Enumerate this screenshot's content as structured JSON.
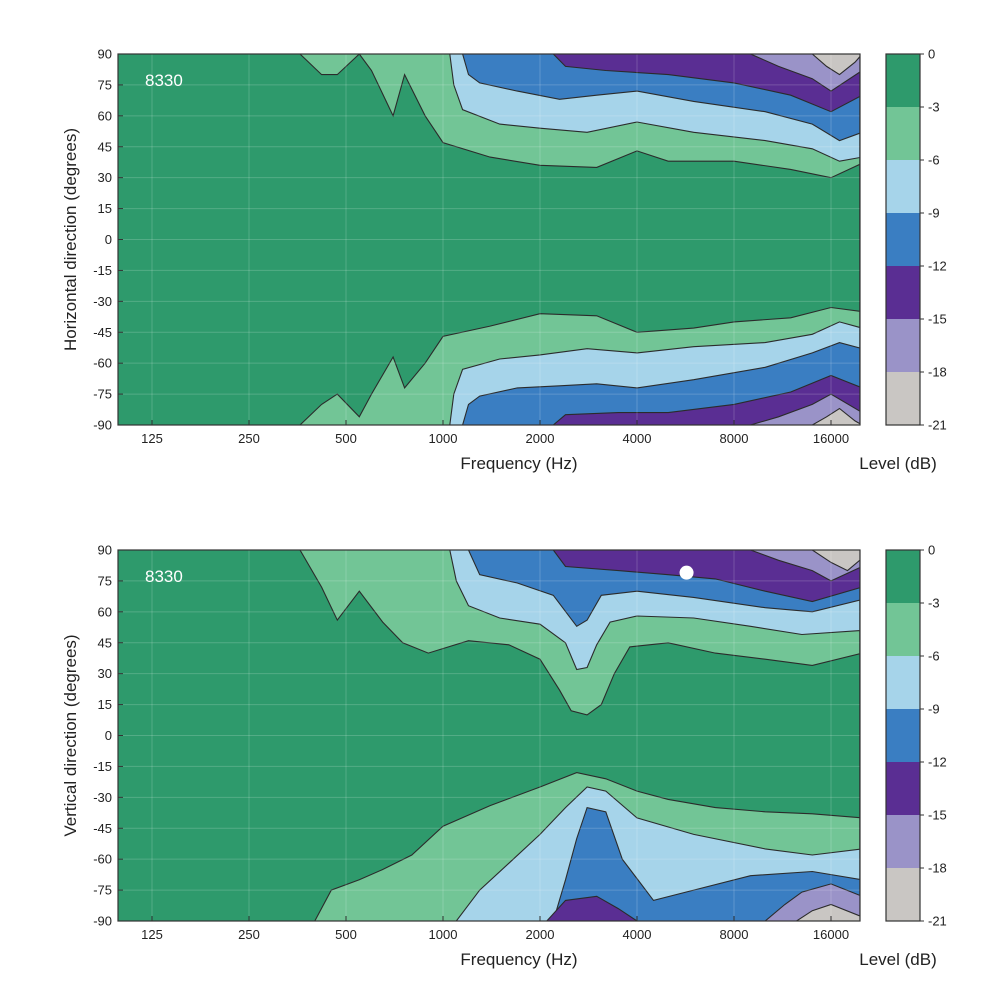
{
  "chart_data": [
    {
      "type": "heatmap",
      "subtype": "filled-contour",
      "id_label": "8330",
      "xlabel": "Frequency (Hz)",
      "ylabel": "Horizontal direction (degrees)",
      "x_scale": "log",
      "x_ticks": [
        "125",
        "250",
        "500",
        "1000",
        "2000",
        "4000",
        "8000",
        "16000"
      ],
      "y_ticks": [
        "90",
        "75",
        "60",
        "45",
        "30",
        "15",
        "0",
        "-15",
        "-30",
        "-45",
        "-60",
        "-75",
        "-90"
      ],
      "ylim": [
        -90,
        90
      ],
      "colorbar": {
        "label": "Level (dB)",
        "ticks": [
          "0",
          "-3",
          "-6",
          "-9",
          "-12",
          "-15",
          "-18",
          "-21"
        ],
        "colors": [
          "#2e9a6c",
          "#72c596",
          "#a6d4ea",
          "#3a7ec2",
          "#5a2e93",
          "#9a93c8",
          "#c9c6c3"
        ]
      },
      "contours": [
        {
          "level_db": -3,
          "upper": [
            [
              360,
              90
            ],
            [
              420,
              80
            ],
            [
              470,
              80
            ],
            [
              550,
              90
            ],
            [
              600,
              82
            ],
            [
              700,
              60
            ],
            [
              760,
              80
            ],
            [
              880,
              60
            ],
            [
              1000,
              47
            ],
            [
              1400,
              40
            ],
            [
              2000,
              36
            ],
            [
              3000,
              35
            ],
            [
              4000,
              43
            ],
            [
              5000,
              38
            ],
            [
              8000,
              38
            ],
            [
              12000,
              34
            ],
            [
              16000,
              30
            ],
            [
              20000,
              37
            ]
          ],
          "lower": [
            [
              360,
              -90
            ],
            [
              420,
              -80
            ],
            [
              470,
              -75
            ],
            [
              550,
              -86
            ],
            [
              600,
              -75
            ],
            [
              700,
              -57
            ],
            [
              760,
              -72
            ],
            [
              880,
              -60
            ],
            [
              1000,
              -47
            ],
            [
              1400,
              -42
            ],
            [
              2000,
              -36
            ],
            [
              3000,
              -37
            ],
            [
              4000,
              -45
            ],
            [
              6000,
              -43
            ],
            [
              8000,
              -40
            ],
            [
              12000,
              -38
            ],
            [
              16000,
              -33
            ],
            [
              20000,
              -35
            ]
          ]
        },
        {
          "level_db": -6,
          "upper": [
            [
              1050,
              90
            ],
            [
              1080,
              75
            ],
            [
              1150,
              63
            ],
            [
              1500,
              56
            ],
            [
              2000,
              54
            ],
            [
              2800,
              52
            ],
            [
              4000,
              57
            ],
            [
              6000,
              52
            ],
            [
              10000,
              48
            ],
            [
              14000,
              44
            ],
            [
              17000,
              38
            ],
            [
              20000,
              40
            ]
          ],
          "lower": [
            [
              1050,
              -90
            ],
            [
              1080,
              -75
            ],
            [
              1150,
              -63
            ],
            [
              1500,
              -58
            ],
            [
              2000,
              -56
            ],
            [
              2800,
              -53
            ],
            [
              4000,
              -55
            ],
            [
              6000,
              -52
            ],
            [
              10000,
              -50
            ],
            [
              14000,
              -46
            ],
            [
              17000,
              -40
            ],
            [
              20000,
              -43
            ]
          ]
        },
        {
          "level_db": -9,
          "upper": [
            [
              1150,
              90
            ],
            [
              1200,
              80
            ],
            [
              1300,
              76
            ],
            [
              1700,
              72
            ],
            [
              2300,
              68
            ],
            [
              3000,
              70
            ],
            [
              4000,
              72
            ],
            [
              6000,
              67
            ],
            [
              10000,
              62
            ],
            [
              14000,
              56
            ],
            [
              17000,
              48
            ],
            [
              20000,
              52
            ]
          ],
          "lower": [
            [
              1150,
              -90
            ],
            [
              1200,
              -80
            ],
            [
              1300,
              -76
            ],
            [
              1700,
              -72
            ],
            [
              2300,
              -71
            ],
            [
              3000,
              -70
            ],
            [
              4000,
              -72
            ],
            [
              6000,
              -68
            ],
            [
              10000,
              -62
            ],
            [
              14000,
              -55
            ],
            [
              17000,
              -50
            ],
            [
              20000,
              -53
            ]
          ]
        },
        {
          "level_db": -12,
          "upper": [
            [
              2200,
              90
            ],
            [
              2400,
              84
            ],
            [
              3200,
              82
            ],
            [
              5000,
              80
            ],
            [
              8000,
              76
            ],
            [
              12000,
              70
            ],
            [
              16000,
              62
            ],
            [
              20000,
              70
            ]
          ],
          "lower": [
            [
              2200,
              -90
            ],
            [
              2400,
              -85
            ],
            [
              3500,
              -84
            ],
            [
              5000,
              -84
            ],
            [
              8000,
              -80
            ],
            [
              12000,
              -74
            ],
            [
              16000,
              -66
            ],
            [
              20000,
              -72
            ]
          ]
        },
        {
          "level_db": -15,
          "upper": [
            [
              9000,
              90
            ],
            [
              11000,
              84
            ],
            [
              14000,
              78
            ],
            [
              16000,
              72
            ],
            [
              20000,
              82
            ]
          ],
          "lower": [
            [
              9000,
              -90
            ],
            [
              11000,
              -86
            ],
            [
              14000,
              -80
            ],
            [
              16000,
              -75
            ],
            [
              20000,
              -84
            ]
          ]
        },
        {
          "level_db": -18,
          "upper": [
            [
              14000,
              90
            ],
            [
              15500,
              84
            ],
            [
              17000,
              80
            ],
            [
              19000,
              86
            ],
            [
              20000,
              90
            ]
          ],
          "lower": [
            [
              14000,
              -90
            ],
            [
              15500,
              -86
            ],
            [
              17000,
              -82
            ],
            [
              19000,
              -88
            ],
            [
              20000,
              -90
            ]
          ]
        }
      ]
    },
    {
      "type": "heatmap",
      "subtype": "filled-contour",
      "id_label": "8330",
      "xlabel": "Frequency (Hz)",
      "ylabel": "Vertical direction (degrees)",
      "x_scale": "log",
      "x_ticks": [
        "125",
        "250",
        "500",
        "1000",
        "2000",
        "4000",
        "8000",
        "16000"
      ],
      "y_ticks": [
        "90",
        "75",
        "60",
        "45",
        "30",
        "15",
        "0",
        "-15",
        "-30",
        "-45",
        "-60",
        "-75",
        "-90"
      ],
      "ylim": [
        -90,
        90
      ],
      "marker": {
        "x": 5700,
        "y": 79,
        "color": "#ffffff"
      },
      "colorbar": {
        "label": "Level (dB)",
        "ticks": [
          "0",
          "-3",
          "-6",
          "-9",
          "-12",
          "-15",
          "-18",
          "-21"
        ],
        "colors": [
          "#2e9a6c",
          "#72c596",
          "#a6d4ea",
          "#3a7ec2",
          "#5a2e93",
          "#9a93c8",
          "#c9c6c3"
        ]
      },
      "contours": [
        {
          "level_db": -3,
          "upper": [
            [
              360,
              90
            ],
            [
              420,
              72
            ],
            [
              470,
              56
            ],
            [
              550,
              70
            ],
            [
              650,
              55
            ],
            [
              750,
              45
            ],
            [
              900,
              40
            ],
            [
              1200,
              46
            ],
            [
              1600,
              44
            ],
            [
              2000,
              37
            ],
            [
              2300,
              22
            ],
            [
              2500,
              12
            ],
            [
              2800,
              10
            ],
            [
              3100,
              15
            ],
            [
              3400,
              30
            ],
            [
              3800,
              43
            ],
            [
              5000,
              45
            ],
            [
              7000,
              40
            ],
            [
              10000,
              37
            ],
            [
              14000,
              34
            ],
            [
              20000,
              40
            ]
          ],
          "lower": [
            [
              400,
              -90
            ],
            [
              450,
              -75
            ],
            [
              550,
              -70
            ],
            [
              650,
              -65
            ],
            [
              800,
              -58
            ],
            [
              1000,
              -44
            ],
            [
              1400,
              -34
            ],
            [
              2000,
              -25
            ],
            [
              2600,
              -18
            ],
            [
              3200,
              -21
            ],
            [
              4000,
              -27
            ],
            [
              5000,
              -31
            ],
            [
              7000,
              -35
            ],
            [
              10000,
              -37
            ],
            [
              14000,
              -38
            ],
            [
              20000,
              -40
            ]
          ]
        },
        {
          "level_db": -6,
          "upper": [
            [
              1050,
              90
            ],
            [
              1100,
              75
            ],
            [
              1200,
              63
            ],
            [
              1500,
              57
            ],
            [
              2000,
              54
            ],
            [
              2400,
              45
            ],
            [
              2600,
              32
            ],
            [
              2800,
              33
            ],
            [
              3000,
              44
            ],
            [
              3300,
              55
            ],
            [
              4000,
              58
            ],
            [
              6000,
              57
            ],
            [
              9000,
              53
            ],
            [
              13000,
              49
            ],
            [
              20000,
              51
            ]
          ],
          "lower": [
            [
              1100,
              -90
            ],
            [
              1300,
              -75
            ],
            [
              1600,
              -62
            ],
            [
              2000,
              -48
            ],
            [
              2400,
              -35
            ],
            [
              2800,
              -25
            ],
            [
              3200,
              -27
            ],
            [
              4000,
              -40
            ],
            [
              6000,
              -48
            ],
            [
              10000,
              -55
            ],
            [
              14000,
              -58
            ],
            [
              20000,
              -55
            ]
          ]
        },
        {
          "level_db": -9,
          "upper": [
            [
              1200,
              90
            ],
            [
              1300,
              78
            ],
            [
              1700,
              74
            ],
            [
              2200,
              68
            ],
            [
              2600,
              53
            ],
            [
              2800,
              56
            ],
            [
              3100,
              68
            ],
            [
              4000,
              70
            ],
            [
              6000,
              67
            ],
            [
              10000,
              62
            ],
            [
              14000,
              60
            ],
            [
              20000,
              66
            ]
          ],
          "lower": [
            [
              2200,
              -90
            ],
            [
              2400,
              -70
            ],
            [
              2600,
              -50
            ],
            [
              2800,
              -35
            ],
            [
              3200,
              -37
            ],
            [
              3600,
              -60
            ],
            [
              4500,
              -80
            ],
            [
              6000,
              -75
            ],
            [
              9000,
              -68
            ],
            [
              14000,
              -66
            ],
            [
              20000,
              -70
            ]
          ]
        },
        {
          "level_db": -12,
          "upper": [
            [
              2200,
              90
            ],
            [
              2400,
              82
            ],
            [
              3500,
              80
            ],
            [
              5000,
              78
            ],
            [
              7000,
              76
            ],
            [
              10000,
              70
            ],
            [
              14000,
              65
            ],
            [
              20000,
              72
            ]
          ],
          "lower": [
            [
              2100,
              -90
            ],
            [
              2400,
              -80
            ],
            [
              3000,
              -78
            ],
            [
              3500,
              -84
            ],
            [
              4000,
              -90
            ]
          ]
        },
        {
          "level_db": -15,
          "upper": [
            [
              9000,
              90
            ],
            [
              11000,
              85
            ],
            [
              14000,
              80
            ],
            [
              16000,
              75
            ],
            [
              20000,
              82
            ]
          ],
          "lower": [
            [
              10000,
              -90
            ],
            [
              11500,
              -82
            ],
            [
              13000,
              -76
            ],
            [
              16000,
              -72
            ],
            [
              20000,
              -78
            ]
          ]
        },
        {
          "level_db": -18,
          "upper": [
            [
              14000,
              90
            ],
            [
              16000,
              84
            ],
            [
              18000,
              80
            ],
            [
              20000,
              86
            ]
          ],
          "lower": [
            [
              12500,
              -90
            ],
            [
              14000,
              -85
            ],
            [
              16000,
              -82
            ],
            [
              20000,
              -88
            ]
          ]
        }
      ]
    }
  ]
}
